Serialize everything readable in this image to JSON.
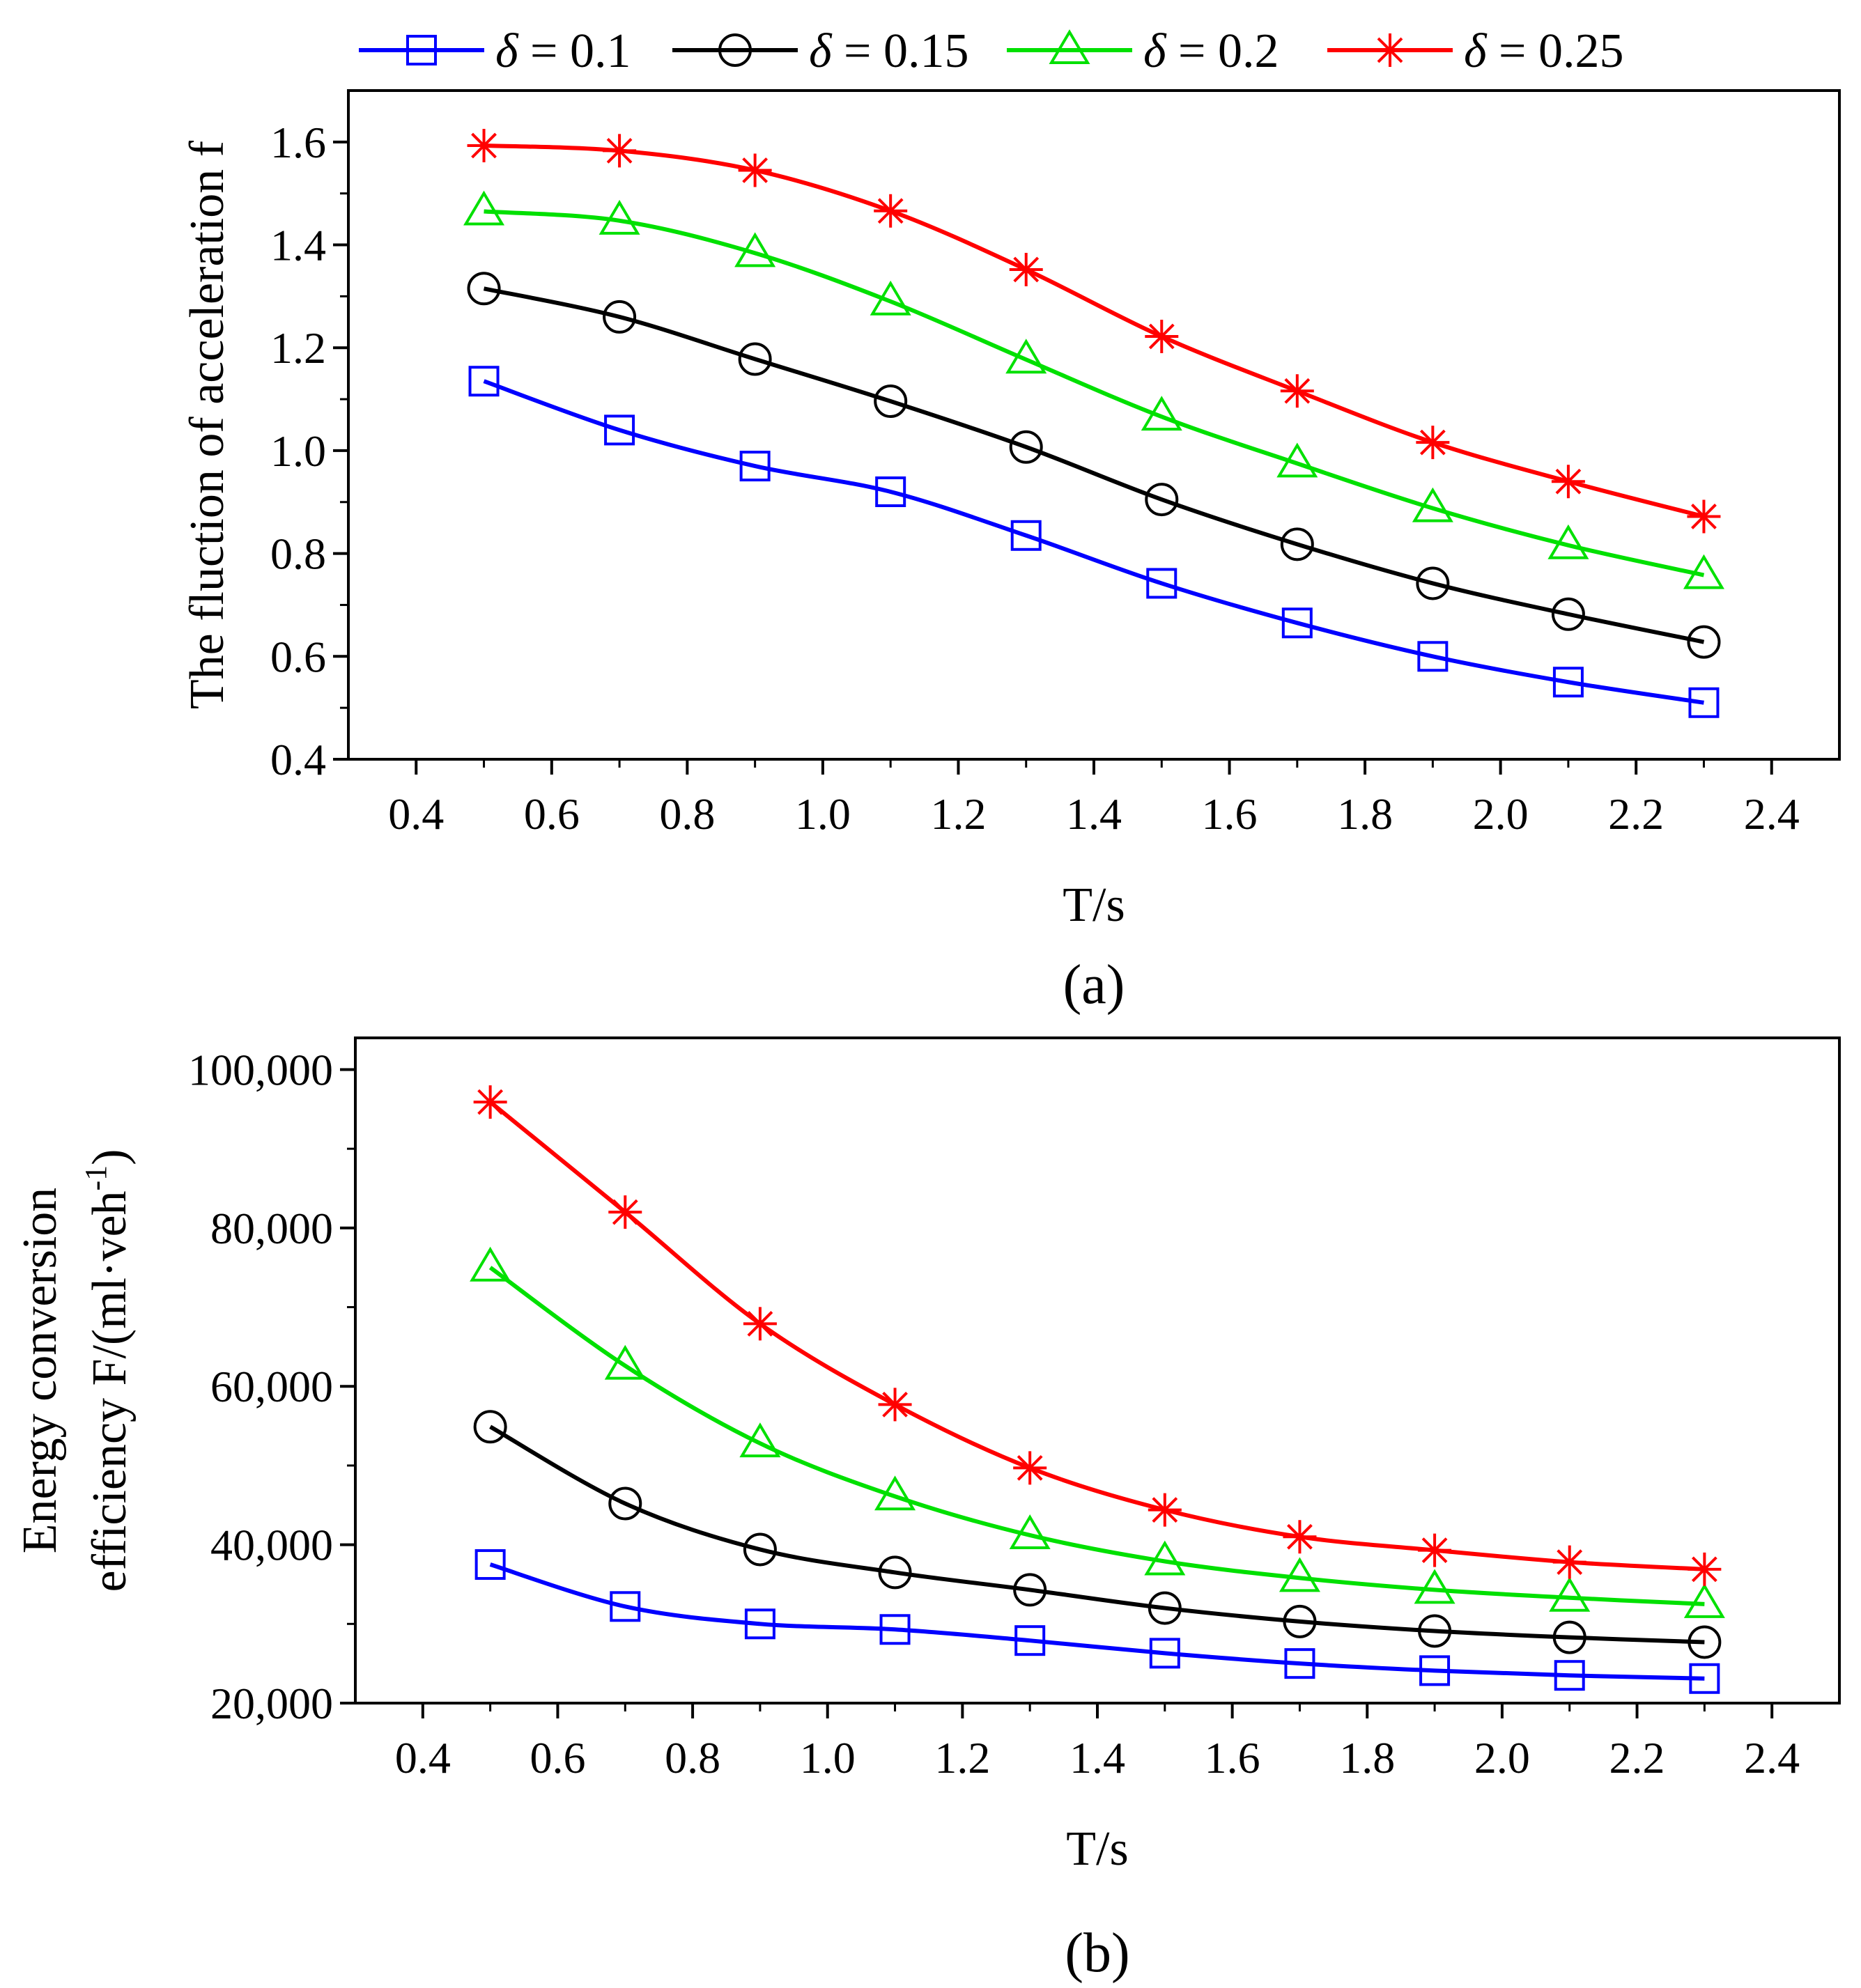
{
  "legend": {
    "entries": [
      {
        "symbol": "δ",
        "eq": " = ",
        "value": "0.1",
        "color": "#0000FF",
        "marker": "square"
      },
      {
        "symbol": "δ",
        "eq": " = ",
        "value": "0.15",
        "color": "#000000",
        "marker": "circle"
      },
      {
        "symbol": "δ",
        "eq": " = ",
        "value": "0.2",
        "color": "#00E000",
        "marker": "triangle"
      },
      {
        "symbol": "δ",
        "eq": " = ",
        "value": "0.25",
        "color": "#FF0000",
        "marker": "asterisk"
      }
    ]
  },
  "chart_data": [
    {
      "type": "line",
      "caption": "(a)",
      "xlabel": "T/s",
      "ylabel": "The fluction of acceleration f",
      "xlim": [
        0.3,
        2.5
      ],
      "ylim": [
        0.4,
        1.7
      ],
      "x_ticks": [
        "0.4",
        "0.6",
        "0.8",
        "1.0",
        "1.2",
        "1.4",
        "1.6",
        "1.8",
        "2.0",
        "2.2",
        "2.4"
      ],
      "x_tick_values": [
        0.4,
        0.6,
        0.8,
        1.0,
        1.2,
        1.4,
        1.6,
        1.8,
        2.0,
        2.2,
        2.4
      ],
      "y_ticks": [
        "0.4",
        "0.6",
        "0.8",
        "1.0",
        "1.2",
        "1.4",
        "1.6"
      ],
      "y_tick_values": [
        0.4,
        0.6,
        0.8,
        1.0,
        1.2,
        1.4,
        1.6
      ],
      "y_minor_step": 0.1,
      "x_minor_step": 0.1,
      "x": [
        0.5,
        0.7,
        0.9,
        1.1,
        1.3,
        1.5,
        1.7,
        1.9,
        2.1,
        2.3
      ],
      "series": [
        {
          "name": "δ = 0.1",
          "values": [
            1.135,
            1.04,
            0.97,
            0.92,
            0.835,
            0.742,
            0.665,
            0.6,
            0.55,
            0.51
          ]
        },
        {
          "name": "δ = 0.15",
          "values": [
            1.315,
            1.26,
            1.178,
            1.096,
            1.007,
            0.905,
            0.818,
            0.742,
            0.682,
            0.628
          ]
        },
        {
          "name": "δ = 0.2",
          "values": [
            1.465,
            1.447,
            1.384,
            1.29,
            1.177,
            1.066,
            0.975,
            0.888,
            0.816,
            0.758
          ]
        },
        {
          "name": "δ = 0.25",
          "values": [
            1.593,
            1.583,
            1.545,
            1.466,
            1.352,
            1.222,
            1.116,
            1.016,
            0.94,
            0.872
          ]
        }
      ]
    },
    {
      "type": "line",
      "caption": "(b)",
      "xlabel": "T/s",
      "ylabel_line1": "Energy conversion",
      "ylabel_line2": "efficiency F/(ml·veh",
      "ylabel_sup": "-1",
      "ylabel_close": ")",
      "xlim": [
        0.3,
        2.5
      ],
      "ylim": [
        20000,
        104000
      ],
      "x_ticks": [
        "0.4",
        "0.6",
        "0.8",
        "1.0",
        "1.2",
        "1.4",
        "1.6",
        "1.8",
        "2.0",
        "2.2",
        "2.4"
      ],
      "x_tick_values": [
        0.4,
        0.6,
        0.8,
        1.0,
        1.2,
        1.4,
        1.6,
        1.8,
        2.0,
        2.2,
        2.4
      ],
      "y_ticks": [
        "20,000",
        "40,000",
        "60,000",
        "80,000",
        "100,000"
      ],
      "y_tick_values": [
        20000,
        40000,
        60000,
        80000,
        100000
      ],
      "y_minor_step": 10000,
      "x_minor_step": 0.1,
      "x": [
        0.5,
        0.7,
        0.9,
        1.1,
        1.3,
        1.5,
        1.7,
        1.9,
        2.1,
        2.3
      ],
      "series": [
        {
          "name": "δ = 0.1",
          "values": [
            37500,
            32200,
            30000,
            29300,
            27900,
            26300,
            25000,
            24100,
            23500,
            23100
          ]
        },
        {
          "name": "δ = 0.15",
          "values": [
            54900,
            45200,
            39400,
            36500,
            34300,
            32000,
            30300,
            29100,
            28300,
            27700
          ]
        },
        {
          "name": "δ = 0.2",
          "values": [
            75000,
            62600,
            52800,
            46100,
            41200,
            37900,
            35800,
            34300,
            33300,
            32500
          ]
        },
        {
          "name": "δ = 0.25",
          "values": [
            95900,
            82000,
            67900,
            57700,
            49700,
            44400,
            41000,
            39300,
            37800,
            36900
          ]
        }
      ]
    }
  ]
}
